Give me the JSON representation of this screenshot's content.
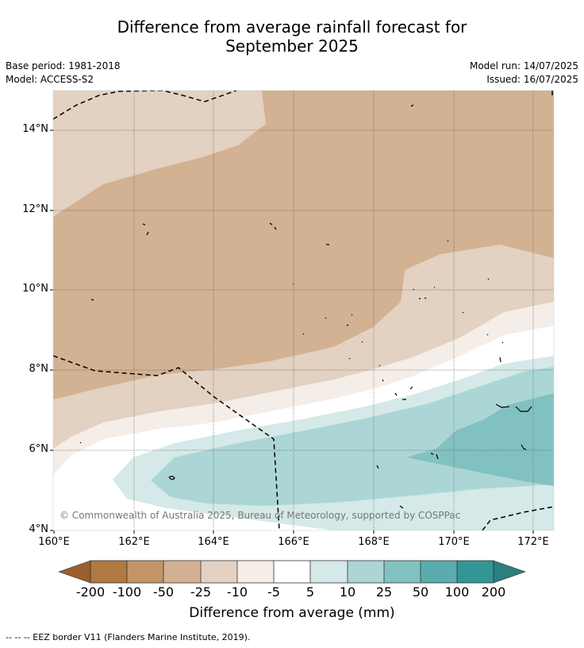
{
  "title_line1": "Difference from average rainfall forecast for",
  "title_line2": "September 2025",
  "base_period": "Base period: 1981-2018",
  "model": "Model: ACCESS-S2",
  "model_run": "Model run: 14/07/2025",
  "issued": "Issued: 16/07/2025",
  "copyright": "© Commonwealth of Australia 2025, Bureau of Meteorology, supported by COSPPac",
  "footnote": "--  --  -- EEZ border V11 (Flanders Marine Institute, 2019).",
  "map": {
    "lat_labels": [
      "14°N",
      "12°N",
      "10°N",
      "8°N",
      "6°N",
      "4°N"
    ],
    "lon_labels": [
      "160°E",
      "162°E",
      "164°E",
      "166°E",
      "168°E",
      "170°E",
      "172°E"
    ],
    "lat_range": [
      4,
      14.9
    ],
    "lon_range": [
      160,
      172.5
    ]
  },
  "colorbar": {
    "title": "Difference from average (mm)",
    "ticks": [
      "-200",
      "-100",
      "-50",
      "-25",
      "-10",
      "-5",
      "5",
      "10",
      "25",
      "50",
      "100",
      "200"
    ],
    "colors": {
      "lt_minus200": "#9a5f2c",
      "minus200_minus100": "#b07a42",
      "minus100_minus50": "#c39566",
      "minus50_minus25": "#d3b193",
      "minus25_minus10": "#e3d1c1",
      "minus10_minus5": "#f4ede8",
      "minus5_5": "#ffffff",
      "5_10": "#d4e9e8",
      "10_25": "#acd6d6",
      "25_50": "#82c1c1",
      "50_100": "#5bacad",
      "100_200": "#339696",
      "gt_200": "#2b7f7f"
    }
  }
}
